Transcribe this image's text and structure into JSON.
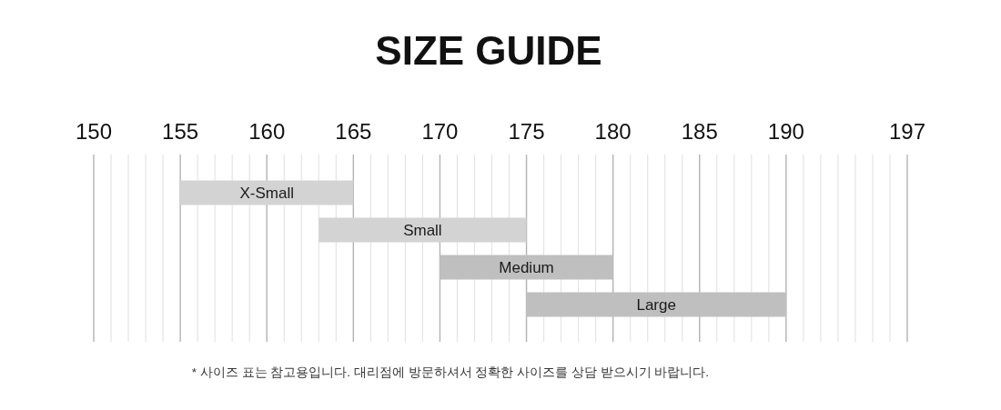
{
  "chart_data": {
    "type": "bar",
    "orientation": "horizontal",
    "title": "SIZE GUIDE",
    "categories": [
      "X-Small",
      "Small",
      "Medium",
      "Large"
    ],
    "base": [
      155,
      163,
      170,
      175
    ],
    "values": [
      10,
      12,
      10,
      15
    ],
    "colors": [
      "#d2d3d2",
      "#d2d3d2",
      "#bebfbe",
      "#bebfbe"
    ],
    "xlim": [
      150,
      197
    ],
    "xticks": [
      150,
      {
        "value": 151,
        "label": null
      },
      {
        "value": 152,
        "label": null
      },
      {
        "value": 153,
        "label": null
      },
      {
        "value": 154,
        "label": null
      },
      155,
      {
        "value": 156,
        "label": null
      },
      {
        "value": 157,
        "label": null
      },
      {
        "value": 158,
        "label": null
      },
      {
        "value": 159,
        "label": null
      },
      160,
      {
        "value": 161,
        "label": null
      },
      {
        "value": 162,
        "label": null
      },
      {
        "value": 163,
        "label": null
      },
      {
        "value": 164,
        "label": null
      },
      165,
      {
        "value": 166,
        "label": null
      },
      {
        "value": 167,
        "label": null
      },
      {
        "value": 168,
        "label": null
      },
      {
        "value": 169,
        "label": null
      },
      170,
      {
        "value": 171,
        "label": null
      },
      {
        "value": 172,
        "label": null
      },
      {
        "value": 173,
        "label": null
      },
      {
        "value": 174,
        "label": null
      },
      175,
      {
        "value": 176,
        "label": null
      },
      {
        "value": 177,
        "label": null
      },
      {
        "value": 178,
        "label": null
      },
      {
        "value": 179,
        "label": null
      },
      180,
      {
        "value": 181,
        "label": null
      },
      {
        "value": 182,
        "label": null
      },
      {
        "value": 183,
        "label": null
      },
      {
        "value": 184,
        "label": null
      },
      185,
      {
        "value": 186,
        "label": null
      },
      {
        "value": 187,
        "label": null
      },
      {
        "value": 188,
        "label": null
      },
      {
        "value": 189,
        "label": null
      },
      190,
      {
        "value": 191,
        "label": null
      },
      {
        "value": 192,
        "label": null
      },
      {
        "value": 193,
        "label": null
      },
      {
        "value": 194,
        "label": null
      },
      {
        "value": 195,
        "label": null
      },
      {
        "value": 196,
        "label": null
      },
      197
    ],
    "grid": "x",
    "annotations": [
      "* 사이즈 표는 참고용입니다. 대리점에 방문하셔서 정확한 사이즈를 상담 받으시기 바랍니다."
    ]
  }
}
